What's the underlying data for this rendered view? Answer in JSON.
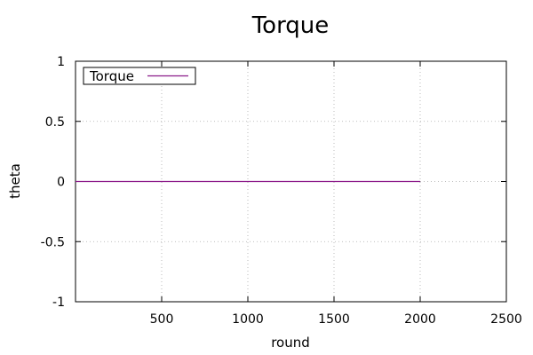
{
  "chart_data": {
    "type": "line",
    "title": "Torque",
    "xlabel": "round",
    "ylabel": "theta",
    "xlim": [
      0,
      2500
    ],
    "ylim": [
      -1,
      1
    ],
    "x_ticks": [
      500,
      1000,
      1500,
      2000,
      2500
    ],
    "x_tick_labels": [
      "500",
      "1000",
      "1500",
      "2000",
      "2500"
    ],
    "y_ticks": [
      -1,
      -0.5,
      0,
      0.5,
      1
    ],
    "y_tick_labels": [
      "-1",
      "-0.5",
      "0",
      "0.5",
      "1"
    ],
    "grid": true,
    "legend_position": "top-left",
    "series": [
      {
        "name": "Torque",
        "color": "#8b1a89",
        "x": [
          0,
          2000
        ],
        "y": [
          0,
          0
        ]
      }
    ]
  }
}
